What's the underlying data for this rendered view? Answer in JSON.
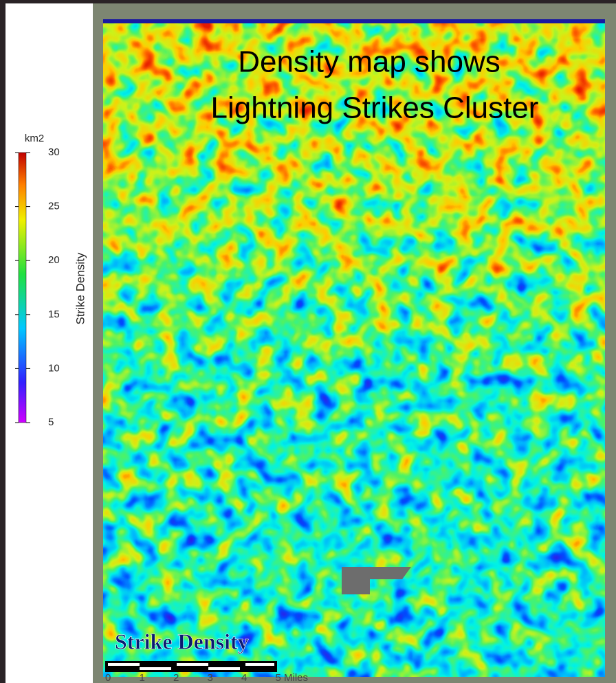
{
  "map": {
    "title_lines": [
      "Density map shows",
      "Lightning Strikes Cluster"
    ],
    "legend": {
      "unit": "km2",
      "label": "Strike  Density",
      "range": [
        5,
        30
      ],
      "ticks": [
        5,
        10,
        15,
        20,
        25,
        30
      ]
    },
    "caption": "Strike Density",
    "scale_bar": {
      "labels": [
        "0",
        "1",
        "2",
        "3",
        "4",
        "5 Miles"
      ]
    }
  }
}
